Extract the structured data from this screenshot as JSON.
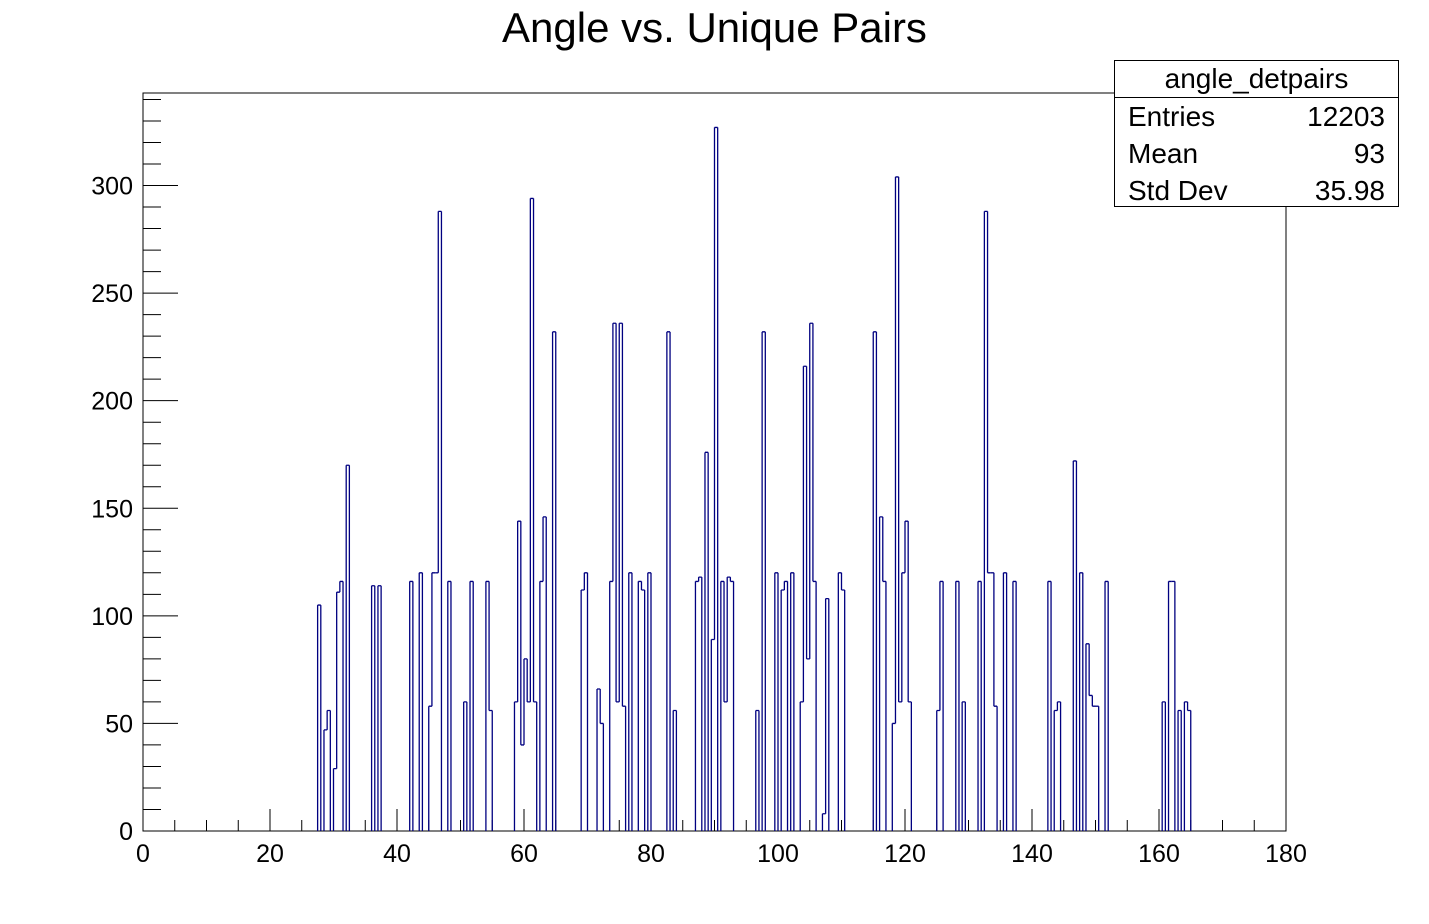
{
  "chart_data": {
    "type": "histogram",
    "title": "Angle vs. Unique Pairs",
    "xlabel": "",
    "ylabel": "",
    "xlim": [
      0,
      180
    ],
    "ylim": [
      0,
      343
    ],
    "x_ticks": [
      "0",
      "20",
      "40",
      "60",
      "80",
      "100",
      "120",
      "140",
      "160",
      "180"
    ],
    "y_ticks": [
      "0",
      "50",
      "100",
      "150",
      "200",
      "250",
      "300"
    ],
    "line_color": "#000080",
    "bin_width": 0.5,
    "bins": [
      [
        27.5,
        105
      ],
      [
        28.0,
        0
      ],
      [
        28.5,
        47
      ],
      [
        29.0,
        56
      ],
      [
        29.5,
        0
      ],
      [
        30.0,
        29
      ],
      [
        30.5,
        111
      ],
      [
        31.0,
        116
      ],
      [
        31.5,
        0
      ],
      [
        32.0,
        170
      ],
      [
        32.5,
        0
      ],
      [
        36.0,
        114
      ],
      [
        36.5,
        0
      ],
      [
        37.0,
        114
      ],
      [
        37.5,
        0
      ],
      [
        42.0,
        116
      ],
      [
        42.5,
        0
      ],
      [
        43.5,
        120
      ],
      [
        44.0,
        0
      ],
      [
        45.0,
        58
      ],
      [
        45.5,
        120
      ],
      [
        46.0,
        120
      ],
      [
        46.5,
        288
      ],
      [
        47.0,
        0
      ],
      [
        48.0,
        116
      ],
      [
        48.5,
        0
      ],
      [
        50.5,
        60
      ],
      [
        51.0,
        0
      ],
      [
        51.5,
        116
      ],
      [
        52.0,
        0
      ],
      [
        54.0,
        116
      ],
      [
        54.5,
        56
      ],
      [
        55.0,
        0
      ],
      [
        58.5,
        60
      ],
      [
        59.0,
        144
      ],
      [
        59.5,
        40
      ],
      [
        60.0,
        80
      ],
      [
        60.5,
        60
      ],
      [
        61.0,
        294
      ],
      [
        61.5,
        60
      ],
      [
        62.0,
        0
      ],
      [
        62.5,
        116
      ],
      [
        63.0,
        146
      ],
      [
        63.5,
        0
      ],
      [
        64.5,
        232
      ],
      [
        65.0,
        0
      ],
      [
        69.0,
        112
      ],
      [
        69.5,
        120
      ],
      [
        70.0,
        0
      ],
      [
        71.5,
        66
      ],
      [
        72.0,
        50
      ],
      [
        72.5,
        0
      ],
      [
        73.5,
        116
      ],
      [
        74.0,
        236
      ],
      [
        74.5,
        60
      ],
      [
        75.0,
        236
      ],
      [
        75.5,
        58
      ],
      [
        76.0,
        0
      ],
      [
        76.5,
        120
      ],
      [
        77.0,
        0
      ],
      [
        78.0,
        116
      ],
      [
        78.5,
        112
      ],
      [
        79.0,
        0
      ],
      [
        79.5,
        120
      ],
      [
        80.0,
        0
      ],
      [
        82.5,
        232
      ],
      [
        83.0,
        0
      ],
      [
        83.5,
        56
      ],
      [
        84.0,
        0
      ],
      [
        87.0,
        116
      ],
      [
        87.5,
        118
      ],
      [
        88.0,
        0
      ],
      [
        88.5,
        176
      ],
      [
        89.0,
        0
      ],
      [
        89.5,
        89
      ],
      [
        90.0,
        327
      ],
      [
        90.5,
        0
      ],
      [
        91.0,
        116
      ],
      [
        91.5,
        60
      ],
      [
        92.0,
        118
      ],
      [
        92.5,
        116
      ],
      [
        93.0,
        0
      ],
      [
        96.5,
        56
      ],
      [
        97.0,
        0
      ],
      [
        97.5,
        232
      ],
      [
        98.0,
        0
      ],
      [
        99.5,
        120
      ],
      [
        100.0,
        0
      ],
      [
        100.5,
        112
      ],
      [
        101.0,
        116
      ],
      [
        101.5,
        0
      ],
      [
        102.0,
        120
      ],
      [
        102.5,
        0
      ],
      [
        103.5,
        60
      ],
      [
        104.0,
        216
      ],
      [
        104.5,
        80
      ],
      [
        105.0,
        236
      ],
      [
        105.5,
        116
      ],
      [
        106.0,
        0
      ],
      [
        107.0,
        8
      ],
      [
        107.5,
        108
      ],
      [
        108.0,
        0
      ],
      [
        109.5,
        120
      ],
      [
        110.0,
        112
      ],
      [
        110.5,
        0
      ],
      [
        115.0,
        232
      ],
      [
        115.5,
        0
      ],
      [
        116.0,
        146
      ],
      [
        116.5,
        116
      ],
      [
        117.0,
        0
      ],
      [
        118.0,
        50
      ],
      [
        118.5,
        304
      ],
      [
        119.0,
        60
      ],
      [
        119.5,
        120
      ],
      [
        120.0,
        144
      ],
      [
        120.5,
        60
      ],
      [
        121.0,
        0
      ],
      [
        125.0,
        56
      ],
      [
        125.5,
        116
      ],
      [
        126.0,
        0
      ],
      [
        128.0,
        116
      ],
      [
        128.5,
        0
      ],
      [
        129.0,
        60
      ],
      [
        129.5,
        0
      ],
      [
        131.5,
        116
      ],
      [
        132.0,
        0
      ],
      [
        132.5,
        288
      ],
      [
        133.0,
        120
      ],
      [
        133.5,
        120
      ],
      [
        134.0,
        58
      ],
      [
        134.5,
        0
      ],
      [
        135.5,
        120
      ],
      [
        136.0,
        0
      ],
      [
        137.0,
        116
      ],
      [
        137.5,
        0
      ],
      [
        142.5,
        116
      ],
      [
        143.0,
        0
      ],
      [
        143.5,
        56
      ],
      [
        144.0,
        60
      ],
      [
        144.5,
        0
      ],
      [
        146.5,
        172
      ],
      [
        147.0,
        0
      ],
      [
        147.5,
        120
      ],
      [
        148.0,
        0
      ],
      [
        148.5,
        87
      ],
      [
        149.0,
        63
      ],
      [
        149.5,
        58
      ],
      [
        150.0,
        58
      ],
      [
        150.5,
        0
      ],
      [
        151.5,
        116
      ],
      [
        152.0,
        0
      ],
      [
        160.5,
        60
      ],
      [
        161.0,
        0
      ],
      [
        161.5,
        116
      ],
      [
        162.0,
        116
      ],
      [
        162.5,
        0
      ],
      [
        163.0,
        56
      ],
      [
        163.5,
        0
      ],
      [
        164.0,
        60
      ],
      [
        164.5,
        56
      ],
      [
        165.0,
        0
      ]
    ]
  },
  "stats": {
    "name": "angle_detpairs",
    "entries_label": "Entries",
    "entries_value": "12203",
    "mean_label": "Mean",
    "mean_value": "93",
    "stddev_label": "Std Dev",
    "stddev_value": "35.98"
  }
}
